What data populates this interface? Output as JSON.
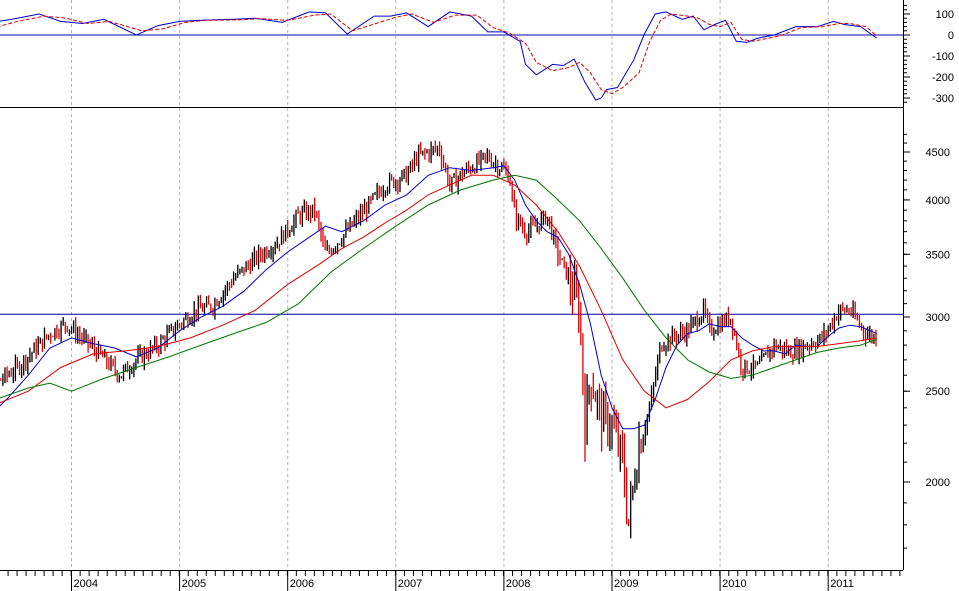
{
  "chart_data": [
    {
      "type": "line",
      "panel": "oscillator",
      "title": "",
      "xlabel": "",
      "ylabel": "",
      "ylim": [
        -330,
        160
      ],
      "y_ticks": [
        "100",
        "0",
        "-100",
        "-200",
        "-300"
      ],
      "y_tick_values": [
        100,
        0,
        -100,
        -200,
        -300
      ],
      "reference_line": 0,
      "colors": {
        "oscillator": "#0000cc",
        "signal": "#dd0000",
        "reference": "#0000aa"
      },
      "series": [
        {
          "style": "solid",
          "color": "#0000cc",
          "x": [
            2003.0,
            2003.2,
            2003.45,
            2003.7,
            2003.9,
            2004.1,
            2004.3,
            2004.6,
            2004.8,
            2005.0,
            2005.2,
            2005.5,
            2005.7,
            2005.95,
            2006.2,
            2006.35,
            2006.55,
            2006.8,
            2006.95,
            2007.1,
            2007.3,
            2007.5,
            2007.7,
            2007.85,
            2008.0,
            2008.15,
            2008.2,
            2008.3,
            2008.45,
            2008.55,
            2008.65,
            2008.75,
            2008.85,
            2008.9,
            2008.95,
            2009.05,
            2009.2,
            2009.3,
            2009.4,
            2009.5,
            2009.65,
            2009.75,
            2009.85,
            2009.95,
            2010.05,
            2010.15,
            2010.25,
            2010.35,
            2010.5,
            2010.7,
            2010.9,
            2011.05,
            2011.15,
            2011.3,
            2011.45
          ],
          "values": [
            -10,
            55,
            75,
            100,
            65,
            55,
            75,
            0,
            45,
            65,
            70,
            75,
            80,
            60,
            110,
            105,
            5,
            90,
            90,
            105,
            40,
            110,
            90,
            15,
            15,
            -30,
            -140,
            -190,
            -140,
            -145,
            -115,
            -225,
            -310,
            -300,
            -260,
            -250,
            -120,
            5,
            100,
            110,
            75,
            90,
            25,
            50,
            70,
            -30,
            -35,
            -15,
            0,
            40,
            40,
            65,
            50,
            40,
            -15
          ]
        },
        {
          "style": "dashed",
          "color": "#dd0000",
          "x": [
            2003.0,
            2003.25,
            2003.5,
            2003.75,
            2003.95,
            2004.15,
            2004.35,
            2004.65,
            2004.85,
            2005.05,
            2005.25,
            2005.55,
            2005.75,
            2006.0,
            2006.25,
            2006.4,
            2006.6,
            2006.85,
            2007.0,
            2007.15,
            2007.35,
            2007.55,
            2007.75,
            2007.9,
            2008.05,
            2008.2,
            2008.3,
            2008.45,
            2008.6,
            2008.7,
            2008.8,
            2008.9,
            2009.0,
            2009.1,
            2009.25,
            2009.35,
            2009.45,
            2009.55,
            2009.7,
            2009.8,
            2009.9,
            2010.0,
            2010.1,
            2010.2,
            2010.3,
            2010.4,
            2010.55,
            2010.75,
            2010.95,
            2011.1,
            2011.2,
            2011.35,
            2011.45
          ],
          "values": [
            -120,
            30,
            65,
            90,
            80,
            55,
            65,
            20,
            30,
            60,
            70,
            72,
            78,
            70,
            95,
            100,
            20,
            60,
            85,
            100,
            60,
            95,
            95,
            35,
            10,
            -40,
            -130,
            -170,
            -155,
            -130,
            -180,
            -260,
            -280,
            -250,
            -180,
            -30,
            70,
            100,
            90,
            80,
            50,
            40,
            60,
            -20,
            -30,
            -20,
            -5,
            35,
            40,
            55,
            55,
            40,
            -5
          ]
        }
      ]
    },
    {
      "type": "candlestick",
      "panel": "price",
      "scale": "log",
      "title": "",
      "xlabel": "",
      "ylabel": "",
      "ylim": [
        1650,
        4750
      ],
      "y_ticks": [
        "4500",
        "4000",
        "3500",
        "3000",
        "2500",
        "2000"
      ],
      "y_tick_values": [
        4500,
        4000,
        3500,
        3000,
        2500,
        2000
      ],
      "x_tick_labels": [
        "2004",
        "2005",
        "2006",
        "2007",
        "2008",
        "2009",
        "2010",
        "2011"
      ],
      "x_tick_values": [
        2004,
        2005,
        2006,
        2007,
        2008,
        2009,
        2010,
        2011
      ],
      "reference_line": 3020,
      "grid": "vertical dashed at year boundaries",
      "colors": {
        "up_bar": "#000000",
        "down_bar": "#dd0000",
        "ma_short": "#0000cc",
        "ma_mid": "#dd0000",
        "ma_long": "#007700"
      },
      "price_path": {
        "x": [
          2003.0,
          2003.2,
          2003.5,
          2003.8,
          2003.95,
          2004.2,
          2004.45,
          2004.6,
          2004.8,
          2005.0,
          2005.15,
          2005.3,
          2005.5,
          2005.75,
          2005.9,
          2006.1,
          2006.25,
          2006.35,
          2006.5,
          2006.75,
          2006.9,
          2007.1,
          2007.2,
          2007.4,
          2007.5,
          2007.65,
          2007.85,
          2008.05,
          2008.1,
          2008.2,
          2008.3,
          2008.4,
          2008.5,
          2008.6,
          2008.7,
          2008.75,
          2008.8,
          2008.9,
          2009.0,
          2009.1,
          2009.15,
          2009.25,
          2009.35,
          2009.45,
          2009.55,
          2009.7,
          2009.85,
          2009.9,
          2010.0,
          2010.1,
          2010.2,
          2010.35,
          2010.5,
          2010.65,
          2010.8,
          2010.95,
          2011.1,
          2011.2,
          2011.35,
          2011.45
        ],
        "values": [
          2330,
          2500,
          2650,
          2880,
          2950,
          2780,
          2600,
          2700,
          2800,
          2950,
          3050,
          3080,
          3300,
          3500,
          3600,
          3850,
          3900,
          3500,
          3650,
          3950,
          4150,
          4250,
          4450,
          4550,
          4150,
          4300,
          4450,
          4250,
          3850,
          3700,
          3750,
          3850,
          3500,
          3300,
          3050,
          2300,
          2600,
          2350,
          2300,
          2100,
          1800,
          2200,
          2400,
          2800,
          2850,
          2900,
          3050,
          2900,
          2950,
          3000,
          2650,
          2650,
          2800,
          2750,
          2800,
          2850,
          3050,
          3050,
          2880,
          2850
        ]
      },
      "series": [
        {
          "style": "moving-average",
          "color": "#0000cc",
          "x": [
            2003.0,
            2003.2,
            2003.4,
            2003.6,
            2003.8,
            2004.0,
            2004.2,
            2004.4,
            2004.6,
            2004.8,
            2005.0,
            2005.2,
            2005.4,
            2005.6,
            2005.8,
            2006.0,
            2006.2,
            2006.35,
            2006.5,
            2006.7,
            2006.9,
            2007.1,
            2007.3,
            2007.5,
            2007.7,
            2007.9,
            2008.0,
            2008.1,
            2008.2,
            2008.3,
            2008.4,
            2008.5,
            2008.6,
            2008.7,
            2008.8,
            2008.9,
            2009.0,
            2009.1,
            2009.2,
            2009.3,
            2009.4,
            2009.5,
            2009.6,
            2009.7,
            2009.8,
            2009.9,
            2010.0,
            2010.1,
            2010.2,
            2010.3,
            2010.4,
            2010.5,
            2010.6,
            2010.7,
            2010.8,
            2010.9,
            2011.0,
            2011.1,
            2011.2,
            2011.3,
            2011.45
          ],
          "values": [
            2300,
            2330,
            2450,
            2600,
            2780,
            2850,
            2810,
            2780,
            2720,
            2780,
            2900,
            3000,
            3080,
            3200,
            3370,
            3520,
            3650,
            3750,
            3700,
            3800,
            3950,
            4050,
            4250,
            4330,
            4300,
            4330,
            4350,
            4200,
            3950,
            3800,
            3700,
            3650,
            3500,
            3250,
            2950,
            2600,
            2400,
            2280,
            2280,
            2300,
            2450,
            2650,
            2800,
            2880,
            2900,
            2950,
            2930,
            2930,
            2850,
            2800,
            2760,
            2760,
            2740,
            2800,
            2790,
            2790,
            2860,
            2920,
            2940,
            2930,
            2880
          ]
        },
        {
          "style": "moving-average",
          "color": "#dd0000",
          "x": [
            2003.0,
            2003.3,
            2003.6,
            2003.9,
            2004.2,
            2004.5,
            2004.8,
            2005.1,
            2005.4,
            2005.7,
            2006.0,
            2006.3,
            2006.5,
            2006.7,
            2006.9,
            2007.1,
            2007.3,
            2007.5,
            2007.7,
            2007.9,
            2008.1,
            2008.3,
            2008.5,
            2008.7,
            2008.9,
            2009.1,
            2009.3,
            2009.5,
            2009.7,
            2009.9,
            2010.1,
            2010.3,
            2010.5,
            2010.7,
            2010.9,
            2011.1,
            2011.3,
            2011.45
          ],
          "values": [
            2400,
            2420,
            2500,
            2650,
            2740,
            2760,
            2790,
            2850,
            2940,
            3050,
            3250,
            3420,
            3550,
            3650,
            3780,
            3900,
            4050,
            4150,
            4250,
            4250,
            4150,
            3950,
            3700,
            3400,
            3050,
            2700,
            2500,
            2400,
            2450,
            2560,
            2700,
            2760,
            2790,
            2790,
            2790,
            2810,
            2830,
            2850
          ]
        },
        {
          "style": "moving-average",
          "color": "#007700",
          "x": [
            2003.0,
            2003.3,
            2003.6,
            2003.8,
            2004.0,
            2004.3,
            2004.6,
            2004.9,
            2005.2,
            2005.5,
            2005.8,
            2006.1,
            2006.4,
            2006.7,
            2007.0,
            2007.3,
            2007.6,
            2007.9,
            2008.1,
            2008.3,
            2008.5,
            2008.7,
            2008.9,
            2009.1,
            2009.3,
            2009.5,
            2009.7,
            2009.9,
            2010.1,
            2010.3,
            2010.5,
            2010.7,
            2010.9,
            2011.1,
            2011.3,
            2011.45
          ],
          "values": [
            2420,
            2450,
            2520,
            2550,
            2500,
            2580,
            2650,
            2720,
            2800,
            2880,
            2960,
            3100,
            3350,
            3550,
            3750,
            3950,
            4100,
            4200,
            4250,
            4200,
            4000,
            3800,
            3550,
            3300,
            3050,
            2850,
            2700,
            2620,
            2580,
            2600,
            2650,
            2700,
            2750,
            2780,
            2800,
            2840
          ]
        }
      ]
    }
  ]
}
